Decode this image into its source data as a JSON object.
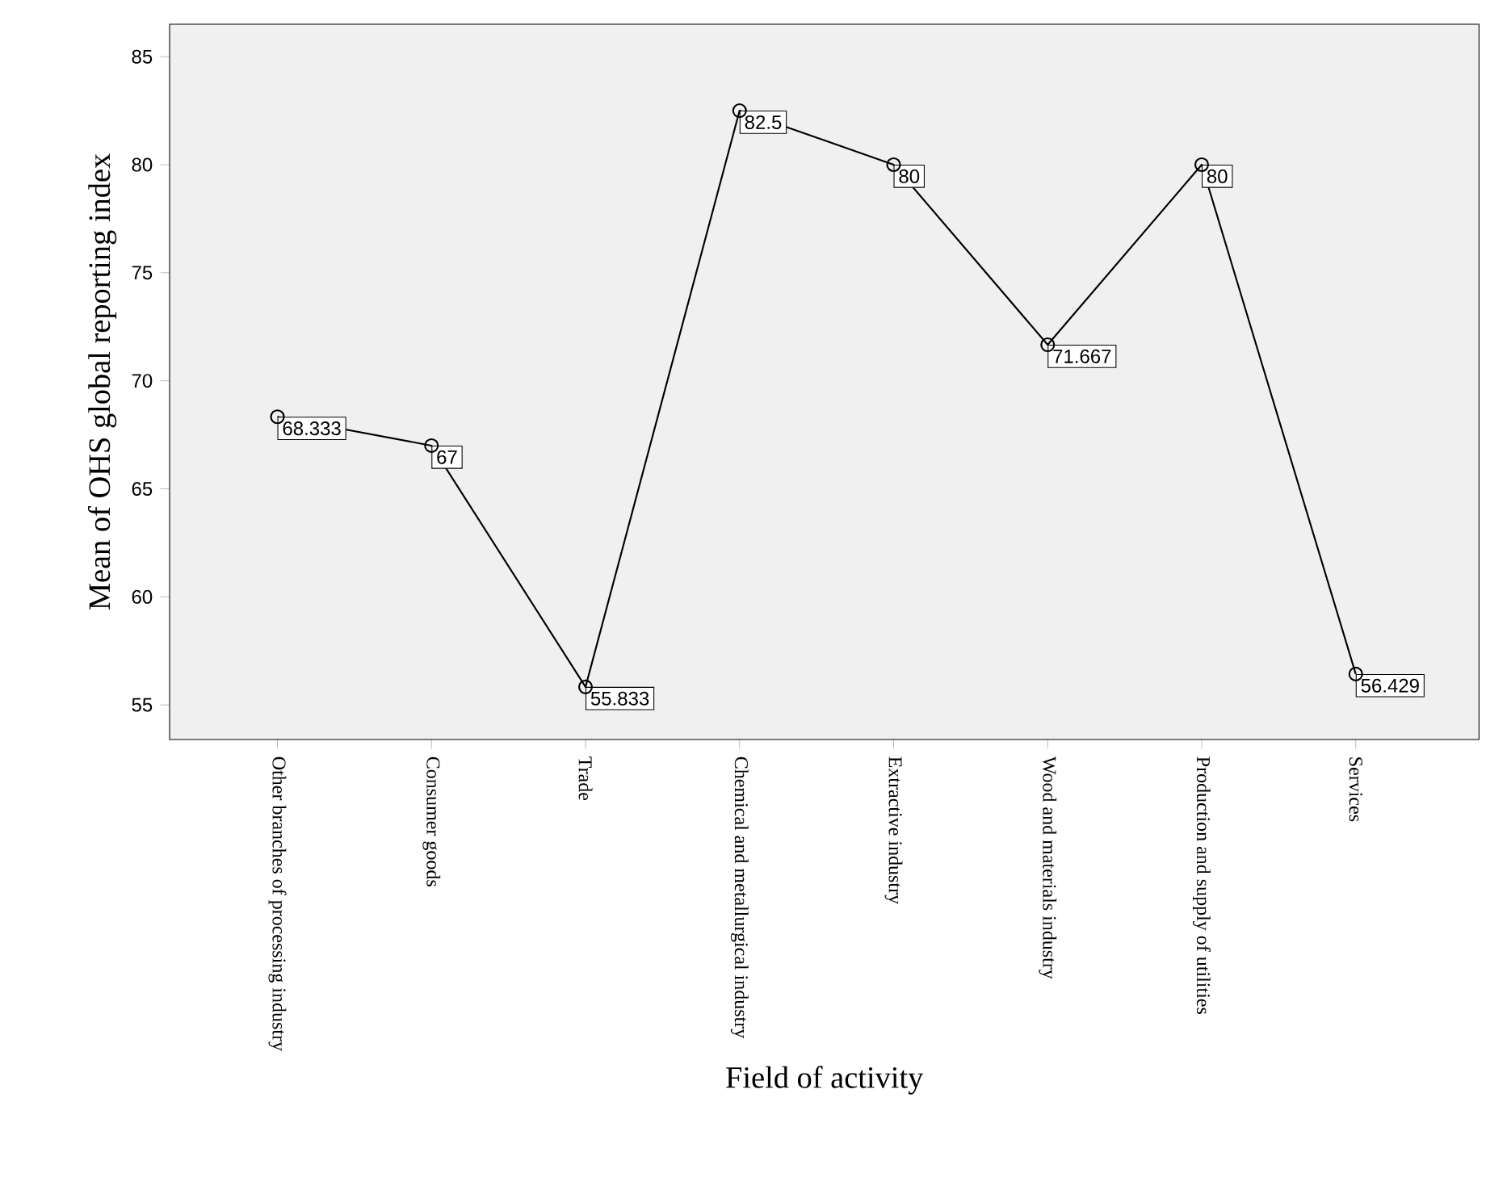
{
  "chart_data": {
    "type": "line",
    "xlabel": "Field of activity",
    "ylabel": "Mean of OHS global reporting index",
    "categories": [
      "Other branches of processing industry",
      "Consumer goods",
      "Trade",
      "Chemical and metallurgical industry",
      "Extractive industry",
      "Wood and materials industry",
      "Production and supply of utilities",
      "Services"
    ],
    "values": [
      68.333,
      67,
      55.833,
      82.5,
      80,
      71.667,
      80,
      56.429
    ],
    "color": "#000000",
    "marker": "circle",
    "data_labels": true,
    "ylim": [
      53.4,
      86.5
    ],
    "yticks": [
      55,
      60,
      65,
      70,
      75,
      80,
      85
    ]
  }
}
